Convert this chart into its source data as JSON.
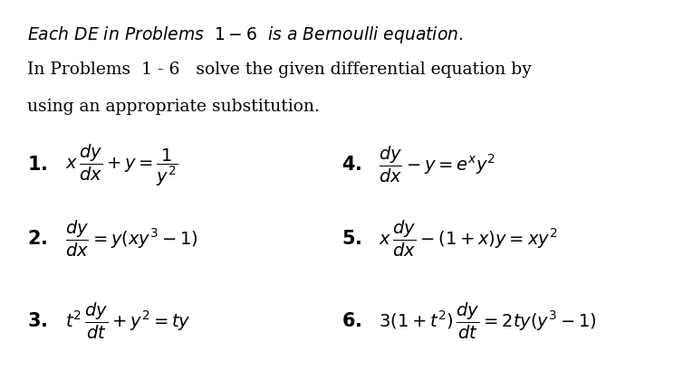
{
  "background_color": "#ffffff",
  "fig_width": 7.54,
  "fig_height": 4.1,
  "dpi": 100,
  "text_color": "#000000",
  "font_size_header": 13.5,
  "font_size_body": 13.5,
  "font_size_eq": 14,
  "italic_line": "Each DE in Problems",
  "italic_suffix": "is a Bernoulli equation.",
  "range_text": "1 - 6",
  "body_line2": "In Problems  1 - 6   solve the given differential equation by",
  "body_line3": "using an appropriate substitution."
}
